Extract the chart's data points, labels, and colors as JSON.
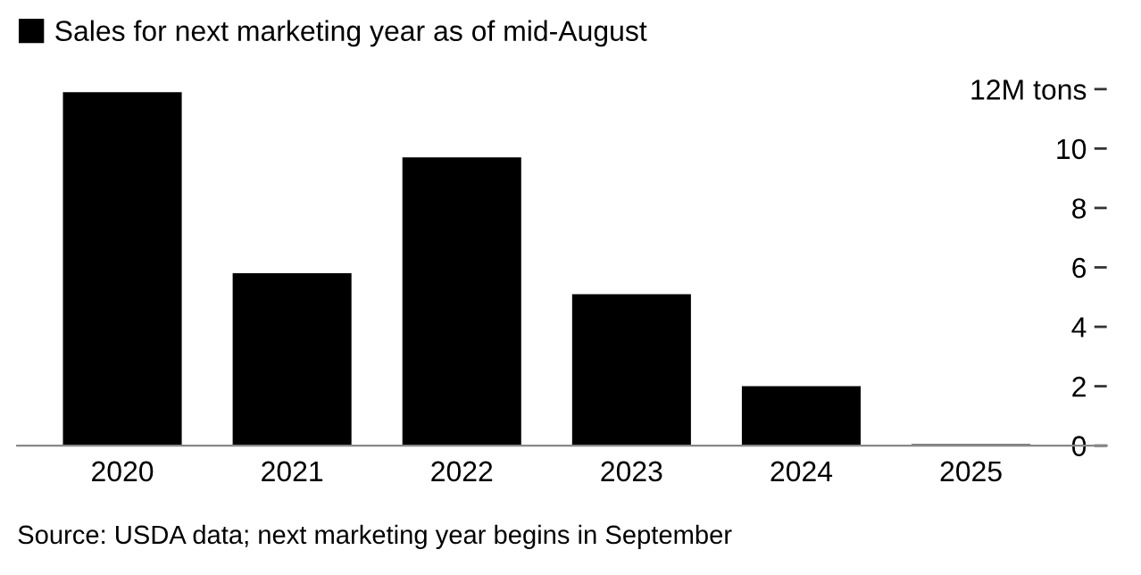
{
  "chart_data": {
    "type": "bar",
    "categories": [
      "2020",
      "2021",
      "2022",
      "2023",
      "2024",
      "2025"
    ],
    "series": [
      {
        "name": "Sales for next marketing year as of mid-August",
        "color": "#000000",
        "values": [
          11.9,
          5.8,
          9.7,
          5.1,
          2.0,
          0.05
        ]
      }
    ],
    "ylim": [
      0,
      12
    ],
    "yticks": [
      0,
      2,
      4,
      6,
      8,
      10,
      {
        "value": 12,
        "label": "12M tons"
      }
    ],
    "grid": false,
    "legend": "top left",
    "annotations": [
      "Source: USDA data; next marketing year begins in September"
    ]
  }
}
